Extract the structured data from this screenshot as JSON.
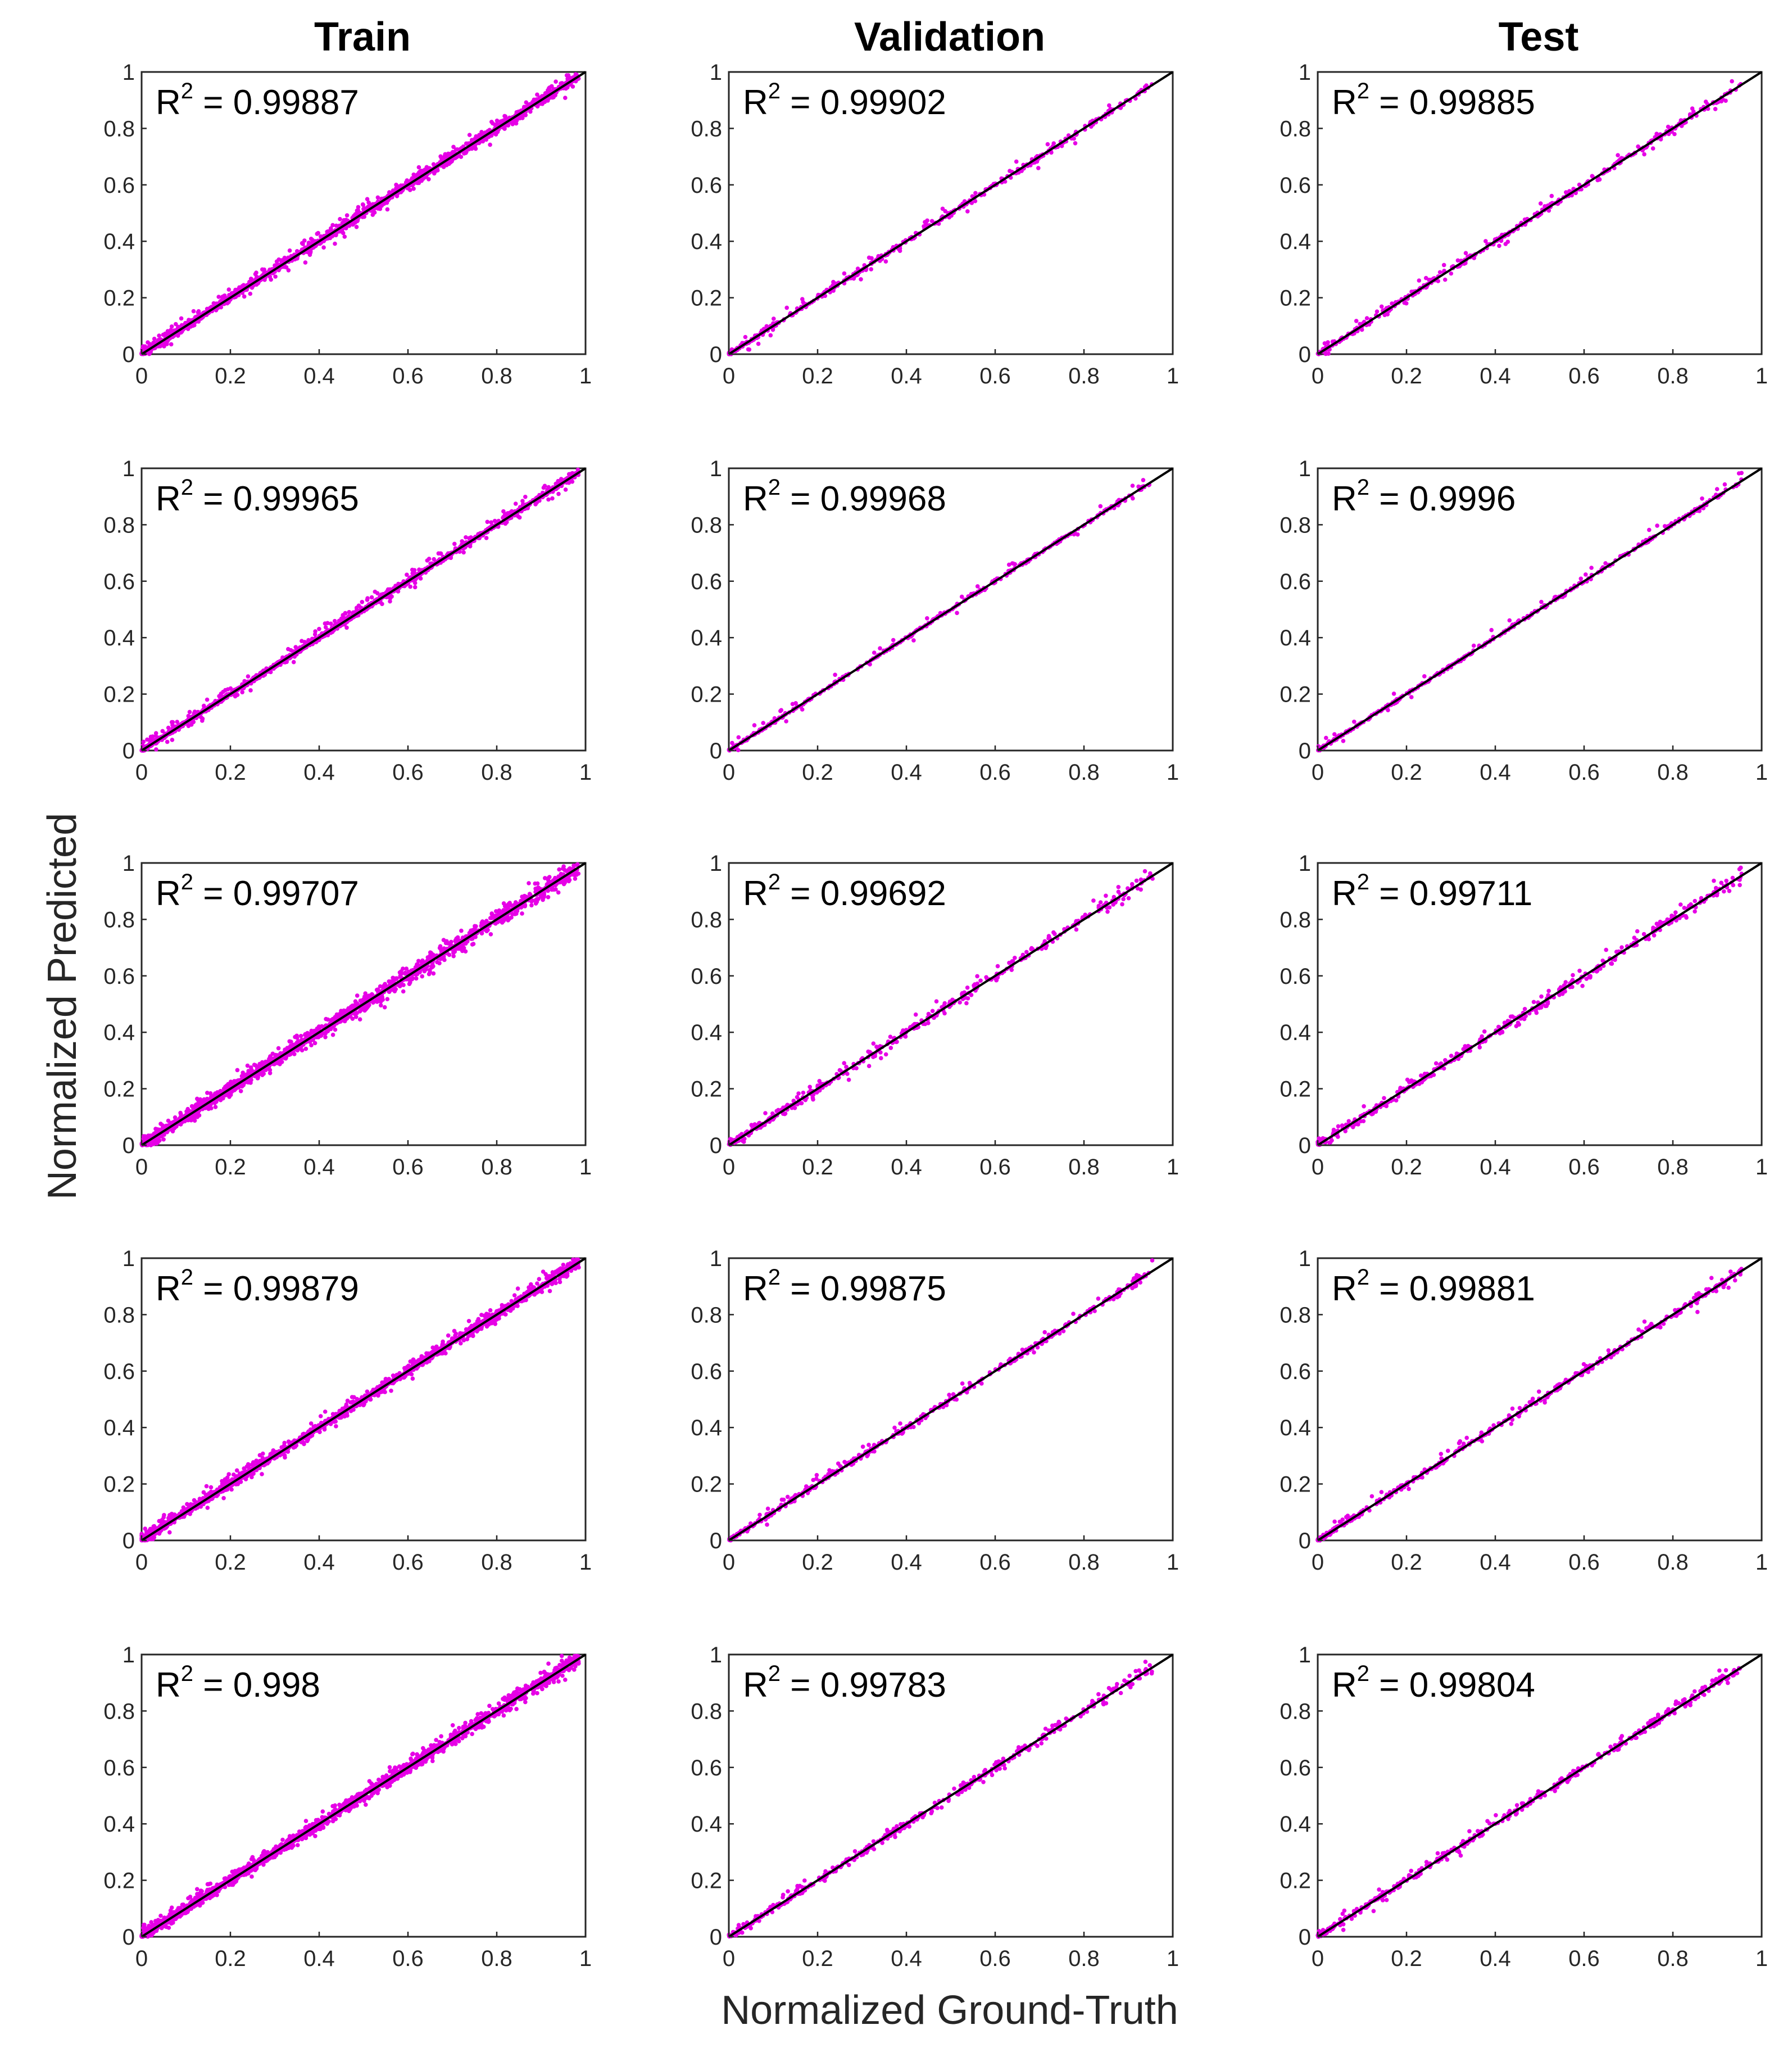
{
  "figure": {
    "xlabel": "Normalized Ground-Truth",
    "ylabel": "Normalized Predicted",
    "columns": [
      "Train",
      "Validation",
      "Test"
    ]
  },
  "colors": {
    "points": "#e600e6",
    "line": "#000000",
    "axes": "#262626"
  },
  "chart_data": [
    {
      "type": "scatter",
      "row": 1,
      "column": "Train",
      "r2_label": "R",
      "r2_exp": "2",
      "r2_text": " = 0.99887",
      "r2": 0.99887,
      "xlim": [
        0,
        1
      ],
      "ylim": [
        0,
        1
      ],
      "xticks": [
        "0",
        "0.2",
        "0.4",
        "0.6",
        "0.8",
        "1"
      ],
      "yticks": [
        "0",
        "0.2",
        "0.4",
        "0.6",
        "0.8",
        "1"
      ],
      "reference_line": {
        "x": [
          0,
          1
        ],
        "y": [
          0,
          1
        ]
      }
    },
    {
      "type": "scatter",
      "row": 1,
      "column": "Validation",
      "r2_label": "R",
      "r2_exp": "2",
      "r2_text": " = 0.99902",
      "r2": 0.99902,
      "xlim": [
        0,
        1
      ],
      "ylim": [
        0,
        1
      ],
      "xticks": [
        "0",
        "0.2",
        "0.4",
        "0.6",
        "0.8",
        "1"
      ],
      "yticks": [
        "0",
        "0.2",
        "0.4",
        "0.6",
        "0.8",
        "1"
      ],
      "reference_line": {
        "x": [
          0,
          1
        ],
        "y": [
          0,
          1
        ]
      }
    },
    {
      "type": "scatter",
      "row": 1,
      "column": "Test",
      "r2_label": "R",
      "r2_exp": "2",
      "r2_text": " = 0.99885",
      "r2": 0.99885,
      "xlim": [
        0,
        1
      ],
      "ylim": [
        0,
        1
      ],
      "xticks": [
        "0",
        "0.2",
        "0.4",
        "0.6",
        "0.8",
        "1"
      ],
      "yticks": [
        "0",
        "0.2",
        "0.4",
        "0.6",
        "0.8",
        "1"
      ],
      "reference_line": {
        "x": [
          0,
          1
        ],
        "y": [
          0,
          1
        ]
      }
    },
    {
      "type": "scatter",
      "row": 2,
      "column": "Train",
      "r2_label": "R",
      "r2_exp": "2",
      "r2_text": " = 0.99965",
      "r2": 0.99965,
      "xlim": [
        0,
        1
      ],
      "ylim": [
        0,
        1
      ],
      "xticks": [
        "0",
        "0.2",
        "0.4",
        "0.6",
        "0.8",
        "1"
      ],
      "yticks": [
        "0",
        "0.2",
        "0.4",
        "0.6",
        "0.8",
        "1"
      ],
      "reference_line": {
        "x": [
          0,
          1
        ],
        "y": [
          0,
          1
        ]
      }
    },
    {
      "type": "scatter",
      "row": 2,
      "column": "Validation",
      "r2_label": "R",
      "r2_exp": "2",
      "r2_text": " = 0.99968",
      "r2": 0.99968,
      "xlim": [
        0,
        1
      ],
      "ylim": [
        0,
        1
      ],
      "xticks": [
        "0",
        "0.2",
        "0.4",
        "0.6",
        "0.8",
        "1"
      ],
      "yticks": [
        "0",
        "0.2",
        "0.4",
        "0.6",
        "0.8",
        "1"
      ],
      "reference_line": {
        "x": [
          0,
          1
        ],
        "y": [
          0,
          1
        ]
      }
    },
    {
      "type": "scatter",
      "row": 2,
      "column": "Test",
      "r2_label": "R",
      "r2_exp": "2",
      "r2_text": " = 0.9996",
      "r2": 0.9996,
      "xlim": [
        0,
        1
      ],
      "ylim": [
        0,
        1
      ],
      "xticks": [
        "0",
        "0.2",
        "0.4",
        "0.6",
        "0.8",
        "1"
      ],
      "yticks": [
        "0",
        "0.2",
        "0.4",
        "0.6",
        "0.8",
        "1"
      ],
      "reference_line": {
        "x": [
          0,
          1
        ],
        "y": [
          0,
          1
        ]
      }
    },
    {
      "type": "scatter",
      "row": 3,
      "column": "Train",
      "r2_label": "R",
      "r2_exp": "2",
      "r2_text": " = 0.99707",
      "r2": 0.99707,
      "xlim": [
        0,
        1
      ],
      "ylim": [
        0,
        1
      ],
      "xticks": [
        "0",
        "0.2",
        "0.4",
        "0.6",
        "0.8",
        "1"
      ],
      "yticks": [
        "0",
        "0.2",
        "0.4",
        "0.6",
        "0.8",
        "1"
      ],
      "reference_line": {
        "x": [
          0,
          1
        ],
        "y": [
          0,
          1
        ]
      }
    },
    {
      "type": "scatter",
      "row": 3,
      "column": "Validation",
      "r2_label": "R",
      "r2_exp": "2",
      "r2_text": " = 0.99692",
      "r2": 0.99692,
      "xlim": [
        0,
        1
      ],
      "ylim": [
        0,
        1
      ],
      "xticks": [
        "0",
        "0.2",
        "0.4",
        "0.6",
        "0.8",
        "1"
      ],
      "yticks": [
        "0",
        "0.2",
        "0.4",
        "0.6",
        "0.8",
        "1"
      ],
      "reference_line": {
        "x": [
          0,
          1
        ],
        "y": [
          0,
          1
        ]
      }
    },
    {
      "type": "scatter",
      "row": 3,
      "column": "Test",
      "r2_label": "R",
      "r2_exp": "2",
      "r2_text": " = 0.99711",
      "r2": 0.99711,
      "xlim": [
        0,
        1
      ],
      "ylim": [
        0,
        1
      ],
      "xticks": [
        "0",
        "0.2",
        "0.4",
        "0.6",
        "0.8",
        "1"
      ],
      "yticks": [
        "0",
        "0.2",
        "0.4",
        "0.6",
        "0.8",
        "1"
      ],
      "reference_line": {
        "x": [
          0,
          1
        ],
        "y": [
          0,
          1
        ]
      }
    },
    {
      "type": "scatter",
      "row": 4,
      "column": "Train",
      "r2_label": "R",
      "r2_exp": "2",
      "r2_text": " = 0.99879",
      "r2": 0.99879,
      "xlim": [
        0,
        1
      ],
      "ylim": [
        0,
        1
      ],
      "xticks": [
        "0",
        "0.2",
        "0.4",
        "0.6",
        "0.8",
        "1"
      ],
      "yticks": [
        "0",
        "0.2",
        "0.4",
        "0.6",
        "0.8",
        "1"
      ],
      "reference_line": {
        "x": [
          0,
          1
        ],
        "y": [
          0,
          1
        ]
      }
    },
    {
      "type": "scatter",
      "row": 4,
      "column": "Validation",
      "r2_label": "R",
      "r2_exp": "2",
      "r2_text": " = 0.99875",
      "r2": 0.99875,
      "xlim": [
        0,
        1
      ],
      "ylim": [
        0,
        1
      ],
      "xticks": [
        "0",
        "0.2",
        "0.4",
        "0.6",
        "0.8",
        "1"
      ],
      "yticks": [
        "0",
        "0.2",
        "0.4",
        "0.6",
        "0.8",
        "1"
      ],
      "reference_line": {
        "x": [
          0,
          1
        ],
        "y": [
          0,
          1
        ]
      }
    },
    {
      "type": "scatter",
      "row": 4,
      "column": "Test",
      "r2_label": "R",
      "r2_exp": "2",
      "r2_text": " = 0.99881",
      "r2": 0.99881,
      "xlim": [
        0,
        1
      ],
      "ylim": [
        0,
        1
      ],
      "xticks": [
        "0",
        "0.2",
        "0.4",
        "0.6",
        "0.8",
        "1"
      ],
      "yticks": [
        "0",
        "0.2",
        "0.4",
        "0.6",
        "0.8",
        "1"
      ],
      "reference_line": {
        "x": [
          0,
          1
        ],
        "y": [
          0,
          1
        ]
      }
    },
    {
      "type": "scatter",
      "row": 5,
      "column": "Train",
      "r2_label": "R",
      "r2_exp": "2",
      "r2_text": " = 0.998",
      "r2": 0.998,
      "xlim": [
        0,
        1
      ],
      "ylim": [
        0,
        1
      ],
      "xticks": [
        "0",
        "0.2",
        "0.4",
        "0.6",
        "0.8",
        "1"
      ],
      "yticks": [
        "0",
        "0.2",
        "0.4",
        "0.6",
        "0.8",
        "1"
      ],
      "reference_line": {
        "x": [
          0,
          1
        ],
        "y": [
          0,
          1
        ]
      }
    },
    {
      "type": "scatter",
      "row": 5,
      "column": "Validation",
      "r2_label": "R",
      "r2_exp": "2",
      "r2_text": " = 0.99783",
      "r2": 0.99783,
      "xlim": [
        0,
        1
      ],
      "ylim": [
        0,
        1
      ],
      "xticks": [
        "0",
        "0.2",
        "0.4",
        "0.6",
        "0.8",
        "1"
      ],
      "yticks": [
        "0",
        "0.2",
        "0.4",
        "0.6",
        "0.8",
        "1"
      ],
      "reference_line": {
        "x": [
          0,
          1
        ],
        "y": [
          0,
          1
        ]
      }
    },
    {
      "type": "scatter",
      "row": 5,
      "column": "Test",
      "r2_label": "R",
      "r2_exp": "2",
      "r2_text": " = 0.99804",
      "r2": 0.99804,
      "xlim": [
        0,
        1
      ],
      "ylim": [
        0,
        1
      ],
      "xticks": [
        "0",
        "0.2",
        "0.4",
        "0.6",
        "0.8",
        "1"
      ],
      "yticks": [
        "0",
        "0.2",
        "0.4",
        "0.6",
        "0.8",
        "1"
      ],
      "reference_line": {
        "x": [
          0,
          1
        ],
        "y": [
          0,
          1
        ]
      }
    }
  ]
}
